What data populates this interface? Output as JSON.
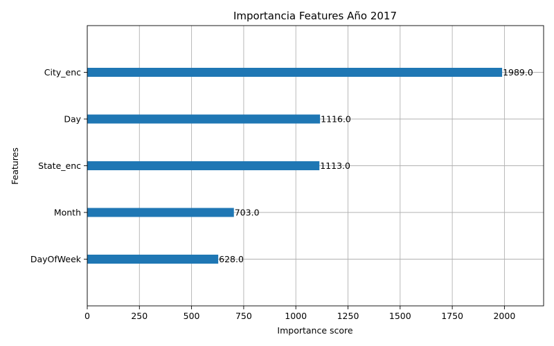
{
  "chart_data": {
    "type": "bar",
    "orientation": "horizontal",
    "title": "Importancia Features Año 2017",
    "xlabel": "Importance score",
    "ylabel": "Features",
    "categories": [
      "City_enc",
      "Day",
      "State_enc",
      "Month",
      "DayOfWeek"
    ],
    "values": [
      1989.0,
      1116.0,
      1113.0,
      703.0,
      628.0
    ],
    "value_labels": [
      "1989.0",
      "1116.0",
      "1113.0",
      "703.0",
      "628.0"
    ],
    "xlim": [
      0,
      2187.9
    ],
    "xticks": [
      0,
      250,
      500,
      750,
      1000,
      1250,
      1500,
      1750,
      2000
    ],
    "xtick_labels": [
      "0",
      "250",
      "500",
      "750",
      "1000",
      "1250",
      "1500",
      "1750",
      "2000"
    ],
    "grid": true,
    "bar_color": "#1f77b4"
  }
}
